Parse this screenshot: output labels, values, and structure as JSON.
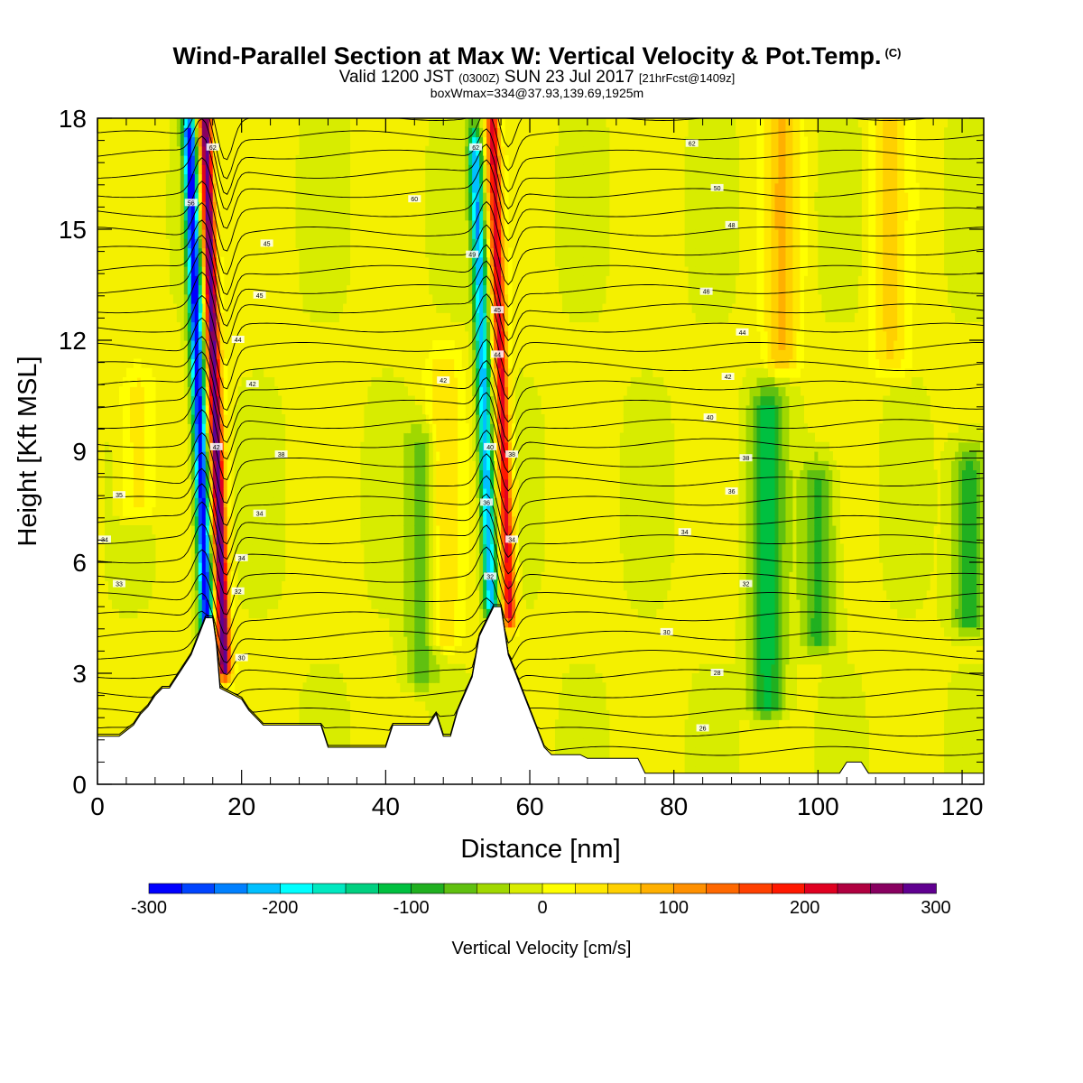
{
  "header": {
    "title": "Wind-Parallel Section at Max W: Vertical Velocity & Pot.Temp.",
    "copyright": "(C)",
    "valid_prefix": "Valid 1200 JST",
    "valid_utc": "(0300Z)",
    "valid_date": "SUN 23 Jul 2017",
    "forecast": "[21hrFcst@1409z]",
    "boxinfo": "boxWmax=334@37.93,139.69,1925m"
  },
  "chart_data": {
    "type": "heatmap",
    "title": "Wind-Parallel Section at Max W: Vertical Velocity & Pot.Temp.",
    "xlabel": "Distance [nm]",
    "ylabel": "Height [Kft MSL]",
    "xlim": [
      0,
      123
    ],
    "ylim": [
      0,
      18
    ],
    "x_ticks": [
      "0",
      "20",
      "40",
      "60",
      "80",
      "100",
      "120"
    ],
    "y_ticks": [
      "0",
      "3",
      "6",
      "9",
      "12",
      "15",
      "18"
    ],
    "x_tick_values": [
      0,
      20,
      40,
      60,
      80,
      100,
      120
    ],
    "y_tick_values": [
      0,
      3,
      6,
      9,
      12,
      15,
      18
    ],
    "colorbar": {
      "title": "Vertical Velocity [cm/s]",
      "tick_labels": [
        "-300",
        "-200",
        "-100",
        "0",
        "100",
        "200",
        "300"
      ],
      "tick_values": [
        -300,
        -200,
        -100,
        0,
        100,
        200,
        300
      ],
      "colors": [
        "#0000ff",
        "#0044ff",
        "#0080ff",
        "#00c0ff",
        "#00ffff",
        "#00e8c0",
        "#00d080",
        "#00c040",
        "#20b020",
        "#60c010",
        "#a0d800",
        "#d8ec00",
        "#ffff00",
        "#ffe800",
        "#ffd000",
        "#ffb000",
        "#ff9000",
        "#ff6800",
        "#ff4000",
        "#ff1800",
        "#e00020",
        "#b00040",
        "#880060",
        "#600090"
      ]
    },
    "terrain_profile": {
      "distance_nm": [
        0,
        3,
        5,
        6,
        7,
        8,
        9,
        10,
        11,
        12,
        13,
        15,
        16,
        16.5,
        17,
        20,
        21,
        22,
        23,
        31,
        32,
        40,
        41,
        46,
        47,
        48,
        49,
        50,
        52,
        53,
        55,
        56,
        57,
        58,
        59,
        60,
        61,
        62,
        63,
        67,
        68,
        75,
        76,
        103,
        104,
        106,
        107,
        123
      ],
      "height_kft": [
        1.3,
        1.3,
        1.6,
        1.9,
        2.1,
        2.4,
        2.6,
        2.6,
        2.9,
        3.2,
        3.5,
        4.5,
        4.5,
        3.8,
        2.6,
        2.3,
        2.0,
        1.8,
        1.6,
        1.6,
        1.0,
        1.0,
        1.6,
        1.6,
        1.9,
        1.3,
        1.3,
        2.0,
        2.9,
        4.0,
        4.8,
        4.8,
        3.5,
        3.0,
        2.5,
        2.0,
        1.5,
        1.0,
        0.8,
        0.8,
        0.7,
        0.7,
        0.3,
        0.3,
        0.6,
        0.6,
        0.3,
        0.3
      ]
    },
    "vertical_velocity_features": [
      {
        "center_nm": 15.2,
        "bottom_kft": 3.9,
        "top_kft": 17.5,
        "value_cms": -300
      },
      {
        "center_nm": 17.6,
        "bottom_kft": 3.2,
        "top_kft": 17.8,
        "value_cms": 300
      },
      {
        "center_nm": 54.6,
        "bottom_kft": 4.9,
        "top_kft": 17.0,
        "value_cms": -220
      },
      {
        "center_nm": 57.2,
        "bottom_kft": 4.6,
        "top_kft": 17.8,
        "value_cms": 220
      },
      {
        "center_nm": 93.0,
        "bottom_kft": 2.2,
        "top_kft": 10.0,
        "value_cms": -110
      },
      {
        "center_nm": 100.0,
        "bottom_kft": 4.0,
        "top_kft": 8.0,
        "value_cms": -80
      },
      {
        "center_nm": 121.0,
        "bottom_kft": 4.5,
        "top_kft": 8.5,
        "value_cms": -90
      },
      {
        "center_nm": 45.0,
        "bottom_kft": 3.0,
        "top_kft": 9.0,
        "value_cms": -60
      },
      {
        "center_nm": 95.0,
        "bottom_kft": 11.5,
        "top_kft": 18.0,
        "value_cms": 80
      },
      {
        "center_nm": 110.0,
        "bottom_kft": 11.5,
        "top_kft": 18.0,
        "value_cms": 60
      },
      {
        "center_nm": 48.0,
        "bottom_kft": 4.0,
        "top_kft": 11.0,
        "value_cms": 50
      },
      {
        "center_nm": 5.5,
        "bottom_kft": 7.5,
        "top_kft": 10.5,
        "value_cms": 40
      }
    ],
    "contour_labels": [
      {
        "x_nm": 16.0,
        "y_kft": 17.2,
        "text": "62"
      },
      {
        "x_nm": 13.0,
        "y_kft": 15.7,
        "text": "56"
      },
      {
        "x_nm": 23.5,
        "y_kft": 14.6,
        "text": "45"
      },
      {
        "x_nm": 22.5,
        "y_kft": 13.2,
        "text": "45"
      },
      {
        "x_nm": 19.5,
        "y_kft": 12.0,
        "text": "44"
      },
      {
        "x_nm": 21.5,
        "y_kft": 10.8,
        "text": "42"
      },
      {
        "x_nm": 16.5,
        "y_kft": 9.1,
        "text": "42"
      },
      {
        "x_nm": 25.5,
        "y_kft": 8.9,
        "text": "38"
      },
      {
        "x_nm": 22.5,
        "y_kft": 7.3,
        "text": "34"
      },
      {
        "x_nm": 20.0,
        "y_kft": 6.1,
        "text": "34"
      },
      {
        "x_nm": 19.5,
        "y_kft": 5.2,
        "text": "32"
      },
      {
        "x_nm": 20.0,
        "y_kft": 3.4,
        "text": "30"
      },
      {
        "x_nm": 3.0,
        "y_kft": 7.8,
        "text": "35"
      },
      {
        "x_nm": 1.0,
        "y_kft": 6.6,
        "text": "34"
      },
      {
        "x_nm": 3.0,
        "y_kft": 5.4,
        "text": "33"
      },
      {
        "x_nm": 52.5,
        "y_kft": 17.2,
        "text": "62"
      },
      {
        "x_nm": 44.0,
        "y_kft": 15.8,
        "text": "60"
      },
      {
        "x_nm": 52.0,
        "y_kft": 14.3,
        "text": "49"
      },
      {
        "x_nm": 55.5,
        "y_kft": 12.8,
        "text": "45"
      },
      {
        "x_nm": 55.5,
        "y_kft": 11.6,
        "text": "44"
      },
      {
        "x_nm": 48.0,
        "y_kft": 10.9,
        "text": "42"
      },
      {
        "x_nm": 54.5,
        "y_kft": 9.1,
        "text": "40"
      },
      {
        "x_nm": 57.5,
        "y_kft": 8.9,
        "text": "38"
      },
      {
        "x_nm": 54.0,
        "y_kft": 7.6,
        "text": "36"
      },
      {
        "x_nm": 57.5,
        "y_kft": 6.6,
        "text": "34"
      },
      {
        "x_nm": 54.5,
        "y_kft": 5.6,
        "text": "32"
      },
      {
        "x_nm": 82.5,
        "y_kft": 17.3,
        "text": "62"
      },
      {
        "x_nm": 86.0,
        "y_kft": 16.1,
        "text": "50"
      },
      {
        "x_nm": 88.0,
        "y_kft": 15.1,
        "text": "48"
      },
      {
        "x_nm": 84.5,
        "y_kft": 13.3,
        "text": "46"
      },
      {
        "x_nm": 89.5,
        "y_kft": 12.2,
        "text": "44"
      },
      {
        "x_nm": 87.5,
        "y_kft": 11.0,
        "text": "42"
      },
      {
        "x_nm": 85.0,
        "y_kft": 9.9,
        "text": "40"
      },
      {
        "x_nm": 90.0,
        "y_kft": 8.8,
        "text": "38"
      },
      {
        "x_nm": 88.0,
        "y_kft": 7.9,
        "text": "36"
      },
      {
        "x_nm": 81.5,
        "y_kft": 6.8,
        "text": "34"
      },
      {
        "x_nm": 90.0,
        "y_kft": 5.4,
        "text": "32"
      },
      {
        "x_nm": 79.0,
        "y_kft": 4.1,
        "text": "30"
      },
      {
        "x_nm": 86.0,
        "y_kft": 3.0,
        "text": "28"
      },
      {
        "x_nm": 84.0,
        "y_kft": 1.5,
        "text": "26"
      }
    ]
  }
}
